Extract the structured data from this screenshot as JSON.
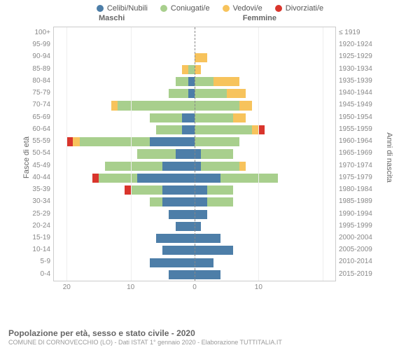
{
  "legend": [
    {
      "label": "Celibi/Nubili",
      "color": "#4d7ea8"
    },
    {
      "label": "Coniugati/e",
      "color": "#a8cf8d"
    },
    {
      "label": "Vedovi/e",
      "color": "#f7c35c"
    },
    {
      "label": "Divorziati/e",
      "color": "#d9352c"
    }
  ],
  "columns": {
    "male": "Maschi",
    "female": "Femmine"
  },
  "axis": {
    "left": "Fasce di età",
    "right": "Anni di nascita"
  },
  "xmax": 22,
  "xticks": [
    20,
    10,
    0,
    10
  ],
  "grid_color": "#eee",
  "zero_color": "#888",
  "border_color": "#ccc",
  "background": "#ffffff",
  "label_color": "#888",
  "title": "Popolazione per età, sesso e stato civile - 2020",
  "subtitle": "COMUNE DI CORNOVECCHIO (LO) - Dati ISTAT 1° gennaio 2020 - Elaborazione TUTTITALIA.IT",
  "rows": [
    {
      "age": "100+",
      "born": "≤ 1919",
      "m": [
        0,
        0,
        0,
        0
      ],
      "f": [
        0,
        0,
        0,
        0
      ]
    },
    {
      "age": "95-99",
      "born": "1920-1924",
      "m": [
        0,
        0,
        0,
        0
      ],
      "f": [
        0,
        0,
        0,
        0
      ]
    },
    {
      "age": "90-94",
      "born": "1925-1929",
      "m": [
        0,
        0,
        0,
        0
      ],
      "f": [
        0,
        0,
        2,
        0
      ]
    },
    {
      "age": "85-89",
      "born": "1930-1934",
      "m": [
        0,
        1,
        1,
        0
      ],
      "f": [
        0,
        0,
        1,
        0
      ]
    },
    {
      "age": "80-84",
      "born": "1935-1939",
      "m": [
        1,
        2,
        0,
        0
      ],
      "f": [
        0,
        3,
        4,
        0
      ]
    },
    {
      "age": "75-79",
      "born": "1940-1944",
      "m": [
        1,
        3,
        0,
        0
      ],
      "f": [
        0,
        5,
        3,
        0
      ]
    },
    {
      "age": "70-74",
      "born": "1945-1949",
      "m": [
        0,
        12,
        1,
        0
      ],
      "f": [
        0,
        7,
        2,
        0
      ]
    },
    {
      "age": "65-69",
      "born": "1950-1954",
      "m": [
        2,
        5,
        0,
        0
      ],
      "f": [
        0,
        6,
        2,
        0
      ]
    },
    {
      "age": "60-64",
      "born": "1955-1959",
      "m": [
        2,
        4,
        0,
        0
      ],
      "f": [
        0,
        9,
        1,
        1
      ]
    },
    {
      "age": "55-59",
      "born": "1960-1964",
      "m": [
        7,
        11,
        1,
        1
      ],
      "f": [
        0,
        7,
        0,
        0
      ]
    },
    {
      "age": "50-54",
      "born": "1965-1969",
      "m": [
        3,
        6,
        0,
        0
      ],
      "f": [
        1,
        5,
        0,
        0
      ]
    },
    {
      "age": "45-49",
      "born": "1970-1974",
      "m": [
        5,
        9,
        0,
        0
      ],
      "f": [
        1,
        6,
        1,
        0
      ]
    },
    {
      "age": "40-44",
      "born": "1975-1979",
      "m": [
        9,
        6,
        0,
        1
      ],
      "f": [
        4,
        9,
        0,
        0
      ]
    },
    {
      "age": "35-39",
      "born": "1980-1984",
      "m": [
        5,
        5,
        0,
        1
      ],
      "f": [
        2,
        4,
        0,
        0
      ]
    },
    {
      "age": "30-34",
      "born": "1985-1989",
      "m": [
        5,
        2,
        0,
        0
      ],
      "f": [
        2,
        4,
        0,
        0
      ]
    },
    {
      "age": "25-29",
      "born": "1990-1994",
      "m": [
        4,
        0,
        0,
        0
      ],
      "f": [
        2,
        0,
        0,
        0
      ]
    },
    {
      "age": "20-24",
      "born": "1995-1999",
      "m": [
        3,
        0,
        0,
        0
      ],
      "f": [
        1,
        0,
        0,
        0
      ]
    },
    {
      "age": "15-19",
      "born": "2000-2004",
      "m": [
        6,
        0,
        0,
        0
      ],
      "f": [
        4,
        0,
        0,
        0
      ]
    },
    {
      "age": "10-14",
      "born": "2005-2009",
      "m": [
        5,
        0,
        0,
        0
      ],
      "f": [
        6,
        0,
        0,
        0
      ]
    },
    {
      "age": "5-9",
      "born": "2010-2014",
      "m": [
        7,
        0,
        0,
        0
      ],
      "f": [
        3,
        0,
        0,
        0
      ]
    },
    {
      "age": "0-4",
      "born": "2015-2019",
      "m": [
        4,
        0,
        0,
        0
      ],
      "f": [
        4,
        0,
        0,
        0
      ]
    }
  ]
}
